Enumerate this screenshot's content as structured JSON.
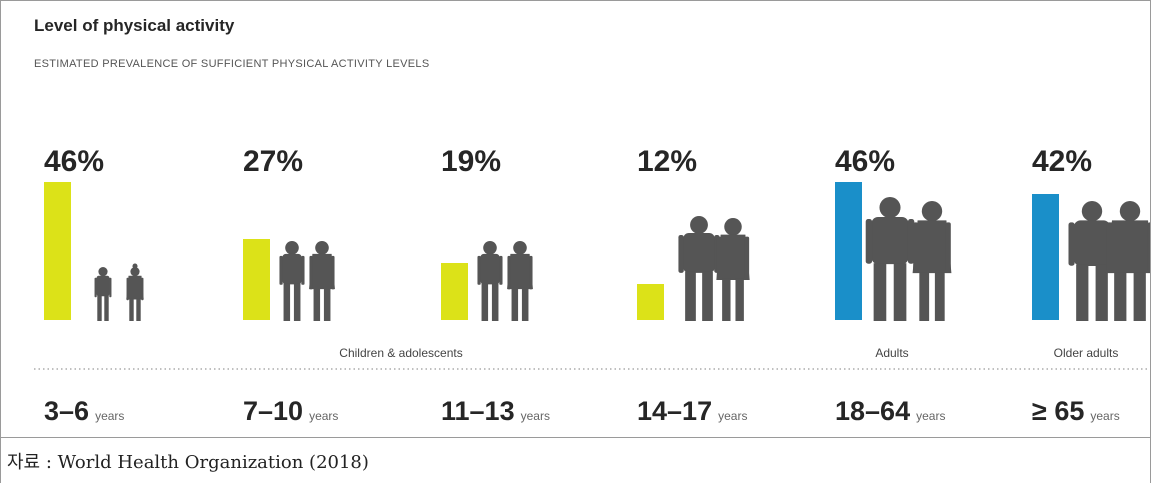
{
  "chart_data": {
    "type": "bar",
    "title": "Level of physical activity",
    "subtitle": "ESTIMATED PREVALENCE OF SUFFICIENT PHYSICAL ACTIVITY LEVELS",
    "categories": [
      "3–6",
      "7–10",
      "11–13",
      "14–17",
      "18–64",
      "≥ 65"
    ],
    "unit_label": "years",
    "values": [
      46,
      27,
      19,
      12,
      46,
      42
    ],
    "value_labels": [
      "46%",
      "27%",
      "19%",
      "12%",
      "46%",
      "42%"
    ],
    "groups": [
      {
        "label": "Children & adolescents",
        "categories": [
          "3–6",
          "7–10",
          "11–13",
          "14–17"
        ]
      },
      {
        "label": "Adults",
        "categories": [
          "18–64"
        ]
      },
      {
        "label": "Older adults",
        "categories": [
          "≥ 65"
        ]
      }
    ],
    "bar_colors": [
      "#dce218",
      "#dce218",
      "#dce218",
      "#dce218",
      "#1a8fc9",
      "#1a8fc9"
    ],
    "icons": [
      "young-children-silhouette-icon",
      "children-silhouette-icon",
      "children-silhouette-icon",
      "teenagers-silhouette-icon",
      "adults-silhouette-icon",
      "older-adults-silhouette-icon"
    ]
  },
  "source": "자료 : World Health Organization (2018)"
}
